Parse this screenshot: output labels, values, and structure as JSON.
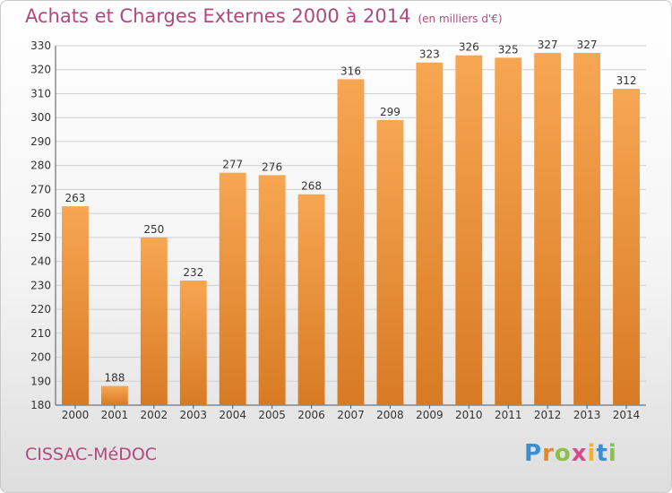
{
  "header": {
    "title": "Achats et Charges Externes 2000 à 2014",
    "subtitle": "(en milliers d'€)"
  },
  "footer": {
    "city": "CISSAC-MéDOC",
    "logo": [
      "P",
      "r",
      "o",
      "x",
      "i",
      "t",
      "i"
    ],
    "logo_colors": [
      "#3b8fd1",
      "#e8862a",
      "#8cc04a",
      "#d94a8c",
      "#f0b429",
      "#3b8fd1",
      "#8cc04a"
    ]
  },
  "chart_data": {
    "type": "bar",
    "categories": [
      "2000",
      "2001",
      "2002",
      "2003",
      "2004",
      "2005",
      "2006",
      "2007",
      "2008",
      "2009",
      "2010",
      "2011",
      "2012",
      "2013",
      "2014"
    ],
    "values": [
      263,
      188,
      250,
      232,
      277,
      276,
      268,
      316,
      299,
      323,
      326,
      325,
      327,
      327,
      312
    ],
    "title": "Achats et Charges Externes 2000 à 2014",
    "ylim": [
      180,
      330
    ],
    "yticks": [
      180,
      190,
      200,
      210,
      220,
      230,
      240,
      250,
      260,
      270,
      280,
      290,
      300,
      310,
      320,
      330
    ],
    "grid": true,
    "bar_color_light": "#f7a652",
    "bar_color_dark": "#d87a24"
  }
}
